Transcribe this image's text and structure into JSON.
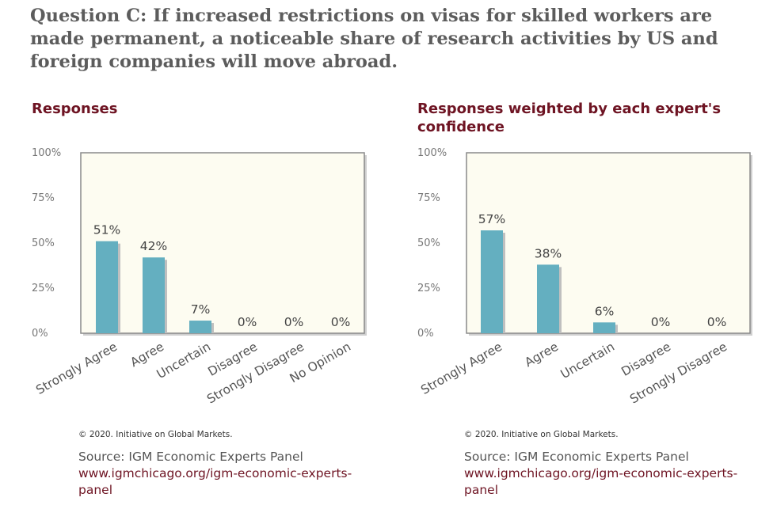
{
  "question": "Question C: If increased restrictions on visas for skilled workers are made permanent, a noticeable share of research activities by US and foreign companies will move abroad.",
  "colors": {
    "bar": "#64afc0",
    "bar_shadow": "#bfbfbf",
    "plot_bg": "#fdfcf1",
    "title": "#6e1423",
    "question": "#5c5c5c"
  },
  "panels": [
    {
      "title": "Responses",
      "copyright": "© 2020. Initiative on Global Markets.",
      "source_line": "Source: IGM Economic Experts Panel",
      "source_url": "www.igmchicago.org/igm-economic-experts-panel"
    },
    {
      "title": "Responses weighted by each expert's confidence",
      "copyright": "© 2020. Initiative on Global Markets.",
      "source_line": "Source: IGM Economic Experts Panel",
      "source_url": "www.igmchicago.org/igm-economic-experts-panel"
    }
  ],
  "chart_data": [
    {
      "type": "bar",
      "title": "Responses",
      "categories": [
        "Strongly Agree",
        "Agree",
        "Uncertain",
        "Disagree",
        "Strongly Disagree",
        "No Opinion"
      ],
      "values": [
        51,
        42,
        7,
        0,
        0,
        0
      ],
      "value_labels": [
        "51%",
        "42%",
        "7%",
        "0%",
        "0%",
        "0%"
      ],
      "ylim": [
        0,
        100
      ],
      "yticks": [
        "0%",
        "25%",
        "50%",
        "75%",
        "100%"
      ],
      "grid": false,
      "xlabel": "",
      "ylabel": ""
    },
    {
      "type": "bar",
      "title": "Responses weighted by each expert's confidence",
      "categories": [
        "Strongly Agree",
        "Agree",
        "Uncertain",
        "Disagree",
        "Strongly Disagree"
      ],
      "values": [
        57,
        38,
        6,
        0,
        0
      ],
      "value_labels": [
        "57%",
        "38%",
        "6%",
        "0%",
        "0%"
      ],
      "ylim": [
        0,
        100
      ],
      "yticks": [
        "0%",
        "25%",
        "50%",
        "75%",
        "100%"
      ],
      "grid": false,
      "xlabel": "",
      "ylabel": ""
    }
  ]
}
